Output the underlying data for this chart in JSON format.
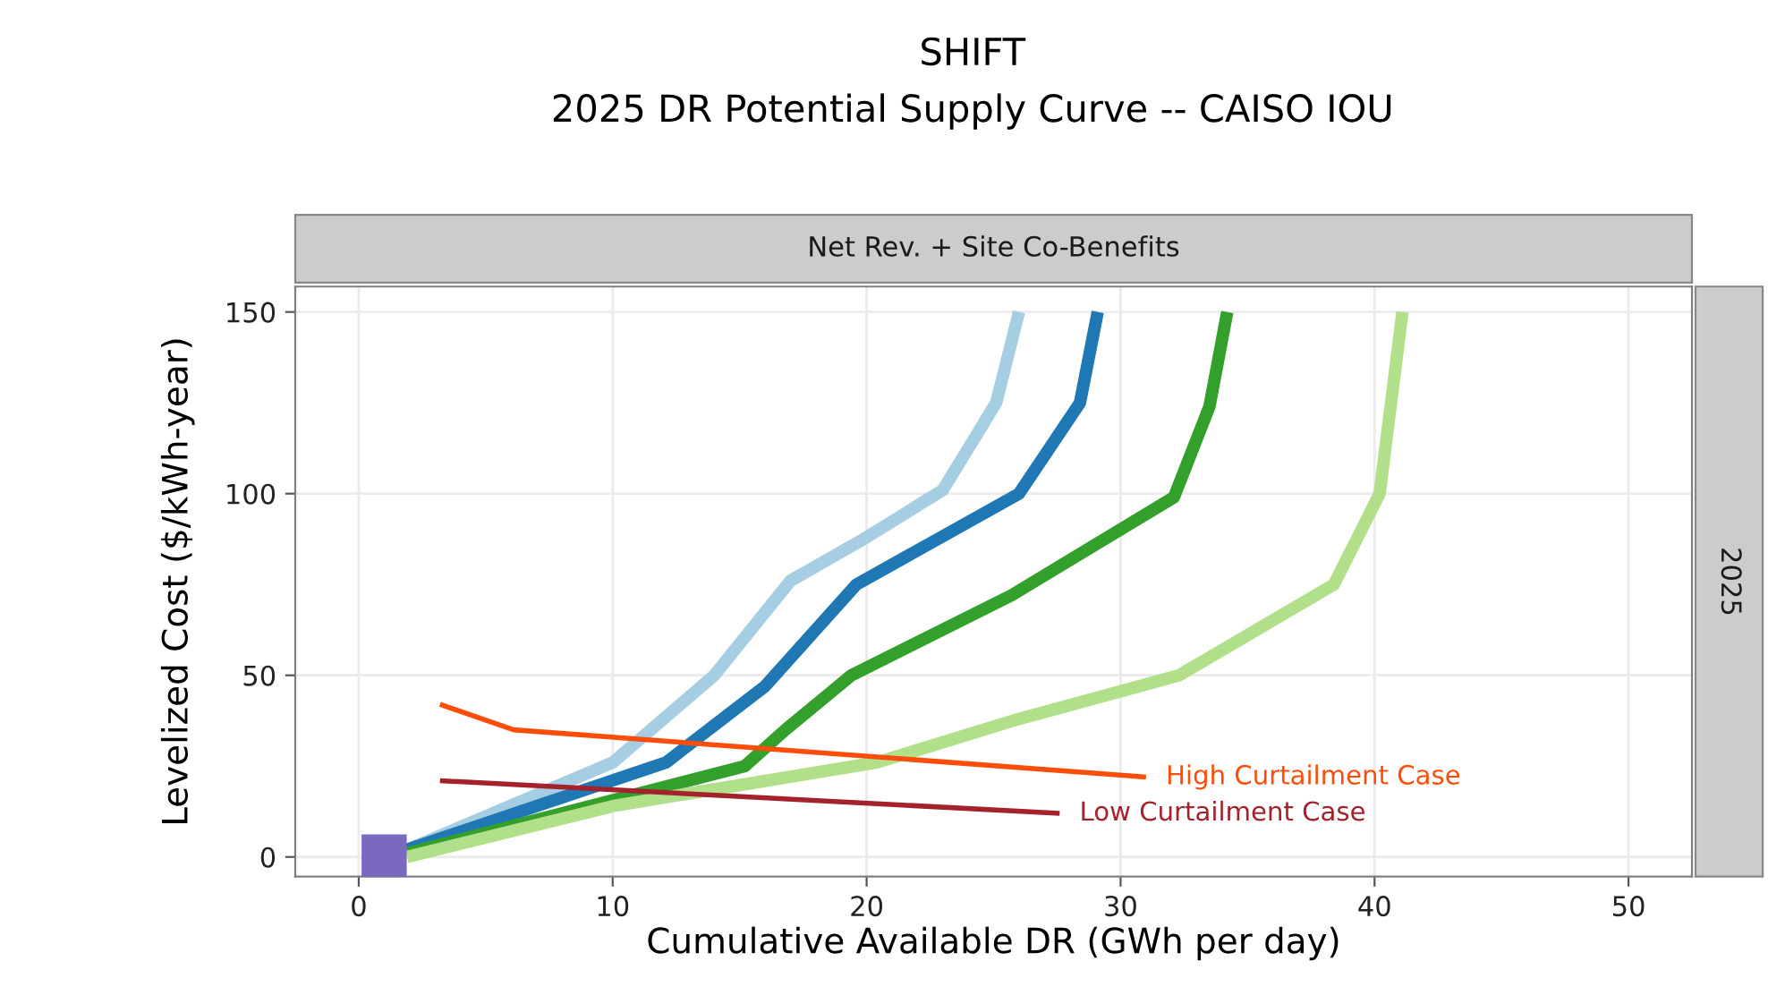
{
  "chart_data": {
    "type": "line",
    "title": "SHIFT",
    "subtitle": "2025 DR Potential Supply Curve -- CAISO IOU",
    "xlabel": "Cumulative Available DR (GWh per day)",
    "ylabel": "Levelized Cost ($/kWh-year)",
    "annotations": [
      "Net Rev. + Site Co-Benefits",
      "2025"
    ],
    "xlim": [
      -2.5,
      52.5
    ],
    "ylim": [
      -5.4,
      157
    ],
    "xticks": [
      0,
      10,
      20,
      30,
      40,
      50
    ],
    "yticks": [
      0,
      50,
      100,
      150
    ],
    "grid": true,
    "series": [
      {
        "color": "#a6cee3",
        "x": [
          1.9,
          10,
          14,
          17,
          20,
          23,
          25.1,
          26
        ],
        "values": [
          2,
          26,
          50,
          76,
          88,
          101,
          125,
          150
        ]
      },
      {
        "color": "#1f78b4",
        "x": [
          1.9,
          12.1,
          16,
          19.6,
          26,
          28.4,
          29.1
        ],
        "values": [
          2,
          26,
          47,
          75,
          100,
          125,
          150
        ]
      },
      {
        "color": "#33a02c",
        "x": [
          1.9,
          15.2,
          16.8,
          19.4,
          25.7,
          32.1,
          33.5,
          34.2
        ],
        "values": [
          1,
          25,
          35,
          50,
          72,
          99,
          124,
          150
        ]
      },
      {
        "color": "#b2df8a",
        "x": [
          1.9,
          10,
          20.4,
          26,
          32.3,
          38.4,
          40.2,
          41.1
        ],
        "values": [
          0,
          14,
          26,
          38,
          50,
          75,
          100,
          150
        ]
      },
      {
        "name": "High Curtailment Case",
        "color": "#fc4e0a",
        "x": [
          3.2,
          6.1,
          31
        ],
        "values": [
          42,
          35,
          22
        ]
      },
      {
        "name": "Low Curtailment Case",
        "color": "#a3222b",
        "x": [
          3.2,
          27.6
        ],
        "values": [
          21,
          12
        ]
      },
      {
        "type": "scatter",
        "marker": "square",
        "color": "#7b68c0",
        "x": [
          1
        ],
        "values": [
          0
        ]
      }
    ]
  }
}
